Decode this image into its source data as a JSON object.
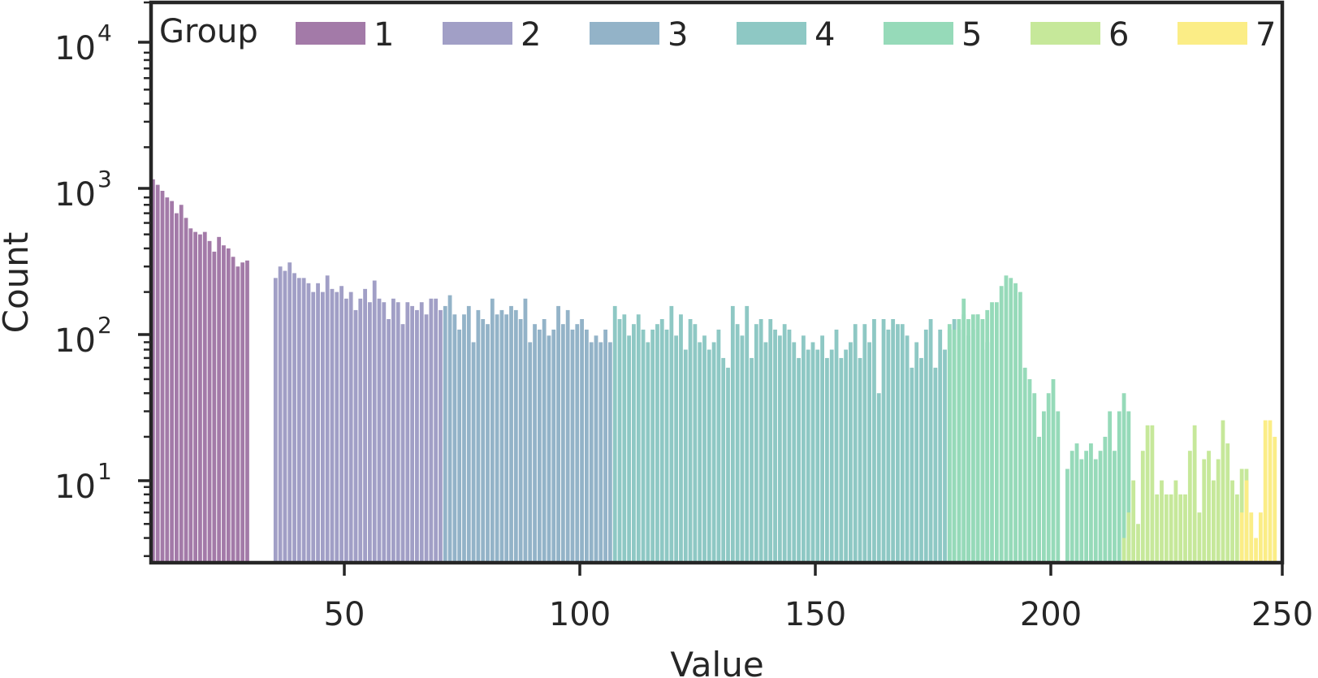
{
  "chart_data": {
    "type": "bar",
    "title": "",
    "xlabel": "Value",
    "ylabel": "Count",
    "y_scale": "log",
    "xlim": [
      9,
      249
    ],
    "ylim": [
      2.7,
      20000
    ],
    "x_ticks": [
      50,
      100,
      150,
      200,
      250
    ],
    "x_tick_labels": [
      "50",
      "100",
      "150",
      "200",
      "250"
    ],
    "y_ticks": [
      10,
      100,
      1000,
      10000
    ],
    "y_tick_labels": [
      {
        "base": "10",
        "exp": "1"
      },
      {
        "base": "10",
        "exp": "2"
      },
      {
        "base": "10",
        "exp": "3"
      },
      {
        "base": "10",
        "exp": "4"
      }
    ],
    "grid": false,
    "legend": {
      "title": "Group",
      "placement": "top",
      "entries": [
        "1",
        "2",
        "3",
        "4",
        "5",
        "6",
        "7"
      ]
    },
    "bar_width": 1,
    "series": [
      {
        "name": "1",
        "color": "#a37aa8",
        "x_start": 9,
        "values": [
          1200,
          1100,
          1000,
          900,
          850,
          700,
          800,
          650,
          550,
          520,
          500,
          520,
          450,
          380,
          480,
          420,
          400,
          350,
          300,
          320,
          330
        ]
      },
      {
        "name": "2",
        "color": "#a19fc6",
        "x_start": 35,
        "values": [
          250,
          300,
          280,
          320,
          270,
          250,
          250,
          230,
          200,
          230,
          200,
          260,
          210,
          200,
          220,
          180,
          200,
          150,
          180,
          210,
          170,
          240,
          180,
          170,
          130,
          180,
          170,
          120,
          170,
          160,
          150,
          170,
          140,
          180,
          180,
          150
        ]
      },
      {
        "name": "3",
        "color": "#93b3c8",
        "x_start": 71,
        "values": [
          160,
          190,
          140,
          110,
          140,
          160,
          90,
          150,
          130,
          120,
          180,
          140,
          150,
          140,
          160,
          150,
          130,
          180,
          90,
          120,
          110,
          130,
          100,
          110,
          160,
          120,
          150,
          110,
          120,
          130,
          110,
          90,
          100,
          90,
          110,
          90
        ]
      },
      {
        "name": "4",
        "color": "#8ec8c4",
        "x_start": 107,
        "values": [
          160,
          130,
          140,
          100,
          120,
          140,
          110,
          90,
          110,
          120,
          130,
          110,
          160,
          100,
          140,
          80,
          130,
          120,
          90,
          100,
          80,
          90,
          110,
          70,
          60,
          160,
          120,
          100,
          160,
          70,
          120,
          130,
          90,
          130,
          110,
          100,
          120,
          110,
          90,
          70,
          100,
          80,
          90,
          80,
          100,
          70,
          80,
          110,
          70,
          80,
          90,
          120,
          70,
          120,
          90,
          130,
          40,
          130,
          110,
          130,
          120,
          120,
          100,
          60,
          90,
          70,
          110,
          130,
          60,
          110,
          80,
          110,
          130,
          110,
          140,
          100,
          110,
          140,
          80,
          90
        ]
      },
      {
        "name": "5",
        "color": "#96dab9",
        "x_start": 178,
        "values": [
          120,
          110,
          130,
          180,
          130,
          140,
          140,
          130,
          150,
          170,
          170,
          220,
          260,
          250,
          230,
          200,
          60,
          50,
          40,
          20,
          30,
          40,
          50,
          30,
          0,
          12,
          16,
          18,
          14,
          16,
          18,
          14,
          16,
          20,
          30,
          16,
          30,
          40,
          30
        ]
      },
      {
        "name": "6",
        "color": "#c6e89a",
        "x_start": 215,
        "values": [
          4,
          6,
          10,
          5,
          16,
          24,
          24,
          8,
          10,
          8,
          8,
          10,
          8,
          8,
          16,
          24,
          6,
          14,
          16,
          10,
          14,
          26,
          18,
          10,
          8,
          12,
          12,
          0
        ]
      },
      {
        "name": "7",
        "color": "#fbed86",
        "x_start": 240,
        "values": [
          6,
          10,
          6,
          4,
          6,
          26,
          26,
          20
        ]
      }
    ]
  }
}
